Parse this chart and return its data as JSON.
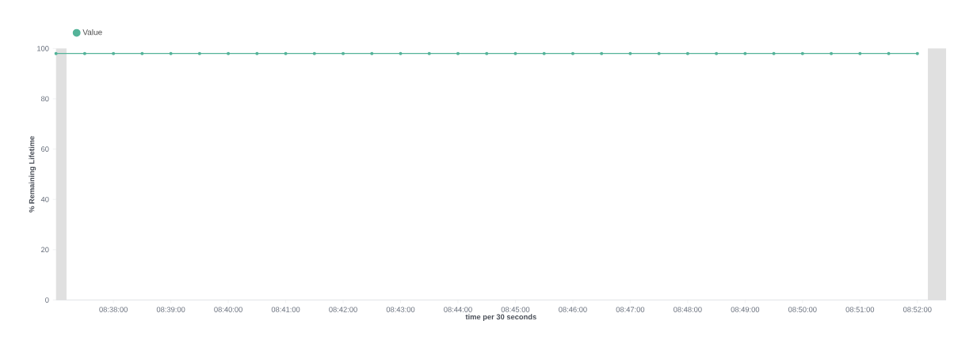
{
  "chart_data": {
    "type": "line",
    "xlabel": "time per 30 seconds",
    "ylabel": "% Remaining Lifetime",
    "x": [
      8.616667,
      8.625,
      8.633333,
      8.641667,
      8.65,
      8.658333,
      8.666667,
      8.675,
      8.683333,
      8.691667,
      8.7,
      8.708333,
      8.716667,
      8.725,
      8.733333,
      8.741667,
      8.75,
      8.758333,
      8.766667,
      8.775,
      8.783333,
      8.791667,
      8.8,
      8.808333,
      8.816667,
      8.825,
      8.833333,
      8.841667,
      8.85,
      8.858333,
      8.866667
    ],
    "series": [
      {
        "name": "Value",
        "color": "#54b399",
        "values": [
          98,
          98,
          98,
          98,
          98,
          98,
          98,
          98,
          98,
          98,
          98,
          98,
          98,
          98,
          98,
          98,
          98,
          98,
          98,
          98,
          98,
          98,
          98,
          98,
          98,
          98,
          98,
          98,
          98,
          98,
          98
        ]
      }
    ],
    "xlim": [
      8.616667,
      8.875
    ],
    "ylim": [
      0,
      100
    ],
    "xticks": [
      {
        "value": 8.633333,
        "label": "08:38:00"
      },
      {
        "value": 8.65,
        "label": "08:39:00"
      },
      {
        "value": 8.666667,
        "label": "08:40:00"
      },
      {
        "value": 8.683333,
        "label": "08:41:00"
      },
      {
        "value": 8.7,
        "label": "08:42:00"
      },
      {
        "value": 8.716667,
        "label": "08:43:00"
      },
      {
        "value": 8.733333,
        "label": "08:44:00"
      },
      {
        "value": 8.75,
        "label": "08:45:00"
      },
      {
        "value": 8.766667,
        "label": "08:46:00"
      },
      {
        "value": 8.783333,
        "label": "08:47:00"
      },
      {
        "value": 8.8,
        "label": "08:48:00"
      },
      {
        "value": 8.816667,
        "label": "08:49:00"
      },
      {
        "value": 8.833333,
        "label": "08:50:00"
      },
      {
        "value": 8.85,
        "label": "08:51:00"
      },
      {
        "value": 8.866667,
        "label": "08:52:00"
      }
    ],
    "yticks": [
      0,
      20,
      40,
      60,
      80,
      100
    ],
    "bands": [
      {
        "axis": "x",
        "from": 8.616667,
        "to": 8.619722,
        "color": "#e0e0e0"
      },
      {
        "axis": "x",
        "from": 8.869722,
        "to": 8.875,
        "color": "#e0e0e0"
      }
    ],
    "legend": "top left",
    "marker": "circle"
  }
}
